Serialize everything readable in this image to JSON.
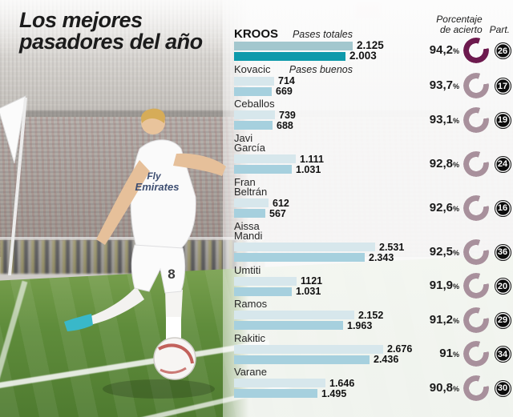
{
  "title": {
    "line1": "Los mejores",
    "line2": "pasadores del año"
  },
  "columns": {
    "accuracy_header_line1": "Porcentaje",
    "accuracy_header_line2": "de acierto",
    "participations_header": "Part.",
    "pct_suffix": "%"
  },
  "series": {
    "totales": "Pases totales",
    "buenos": "Pases buenos"
  },
  "colors": {
    "title_text": "#1b1b1b",
    "bar_totales": "#d7e7ec",
    "bar_buenos": "#a6d0de",
    "bar_totales_highlight": "#a3c7ce",
    "bar_buenos_highlight": "#0f9aab",
    "ring": "#a8909c",
    "ring_highlight": "#6d1a4e",
    "badge_bg": "#0d0d0d",
    "badge_text": "#ffffff"
  },
  "photo": {
    "jersey_sponsor_line1": "Fly",
    "jersey_sponsor_line2": "Emirates",
    "shorts_number": "8"
  },
  "chart_data": {
    "type": "bar",
    "orientation": "horizontal",
    "title": "Los mejores pasadores del año",
    "series_names": [
      "Pases totales",
      "Pases buenos"
    ],
    "value_axis_max": 2676,
    "legend_position": "inline-first-rows",
    "grid": false,
    "players": [
      {
        "name": "KROOS",
        "totales": 2125,
        "buenos": 2003,
        "totales_label": "2.125",
        "buenos_label": "2.003",
        "pct": 94.2,
        "pct_label": "94,2",
        "part": "26",
        "highlight": true
      },
      {
        "name": "Kovacic",
        "totales": 714,
        "buenos": 669,
        "totales_label": "714",
        "buenos_label": "669",
        "pct": 93.7,
        "pct_label": "93,7",
        "part": "17",
        "highlight": false
      },
      {
        "name": "Ceballos",
        "totales": 739,
        "buenos": 688,
        "totales_label": "739",
        "buenos_label": "688",
        "pct": 93.1,
        "pct_label": "93,1",
        "part": "19",
        "highlight": false
      },
      {
        "name": "Javi\nGarcía",
        "totales": 1111,
        "buenos": 1031,
        "totales_label": "1.111",
        "buenos_label": "1.031",
        "pct": 92.8,
        "pct_label": "92,8",
        "part": "24",
        "highlight": false
      },
      {
        "name": "Fran\nBeltrán",
        "totales": 612,
        "buenos": 567,
        "totales_label": "612",
        "buenos_label": "567",
        "pct": 92.6,
        "pct_label": "92,6",
        "part": "16",
        "highlight": false
      },
      {
        "name": "Aissa\nMandi",
        "totales": 2531,
        "buenos": 2343,
        "totales_label": "2.531",
        "buenos_label": "2.343",
        "pct": 92.5,
        "pct_label": "92,5",
        "part": "36",
        "highlight": false
      },
      {
        "name": "Umtiti",
        "totales": 1121,
        "buenos": 1031,
        "totales_label": "1121",
        "buenos_label": "1.031",
        "pct": 91.9,
        "pct_label": "91,9",
        "part": "20",
        "highlight": false
      },
      {
        "name": "Ramos",
        "totales": 2152,
        "buenos": 1963,
        "totales_label": "2.152",
        "buenos_label": "1.963",
        "pct": 91.2,
        "pct_label": "91,2",
        "part": "29",
        "highlight": false
      },
      {
        "name": "Rakitic",
        "totales": 2676,
        "buenos": 2436,
        "totales_label": "2.676",
        "buenos_label": "2.436",
        "pct": 91,
        "pct_label": "91",
        "part": "34",
        "highlight": false
      },
      {
        "name": "Varane",
        "totales": 1646,
        "buenos": 1495,
        "totales_label": "1.646",
        "buenos_label": "1.495",
        "pct": 90.8,
        "pct_label": "90,8",
        "part": "30",
        "highlight": false
      }
    ]
  }
}
